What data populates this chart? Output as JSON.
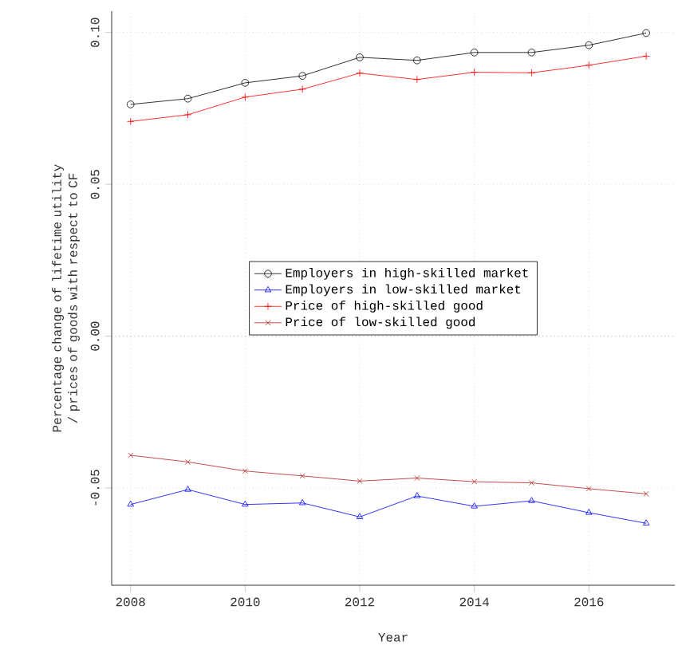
{
  "chart_data": {
    "type": "line",
    "xlabel": "Year",
    "ylabel": "Percentage change of lifetime utility / prices of goods with respect to CF",
    "x": [
      2008,
      2009,
      2010,
      2011,
      2012,
      2013,
      2014,
      2015,
      2016,
      2017
    ],
    "series": [
      {
        "name": "Employers in high-skilled market",
        "color": "#000000",
        "marker": "circle",
        "values": [
          0.0763,
          0.0782,
          0.0834,
          0.0857,
          0.0918,
          0.0908,
          0.0934,
          0.0934,
          0.0958,
          0.0998
        ]
      },
      {
        "name": "Employers in low-skilled market",
        "color": "#0000ff",
        "marker": "triangle",
        "values": [
          -0.0554,
          -0.0505,
          -0.0554,
          -0.0549,
          -0.0595,
          -0.0526,
          -0.056,
          -0.0542,
          -0.0581,
          -0.0616
        ]
      },
      {
        "name": "Price of high-skilled good",
        "color": "#ff0000",
        "marker": "plus",
        "values": [
          0.0707,
          0.0729,
          0.0787,
          0.0813,
          0.0866,
          0.0845,
          0.0869,
          0.0867,
          0.0892,
          0.0922
        ]
      },
      {
        "name": "Price of low-skilled good",
        "color": "#b22222",
        "marker": "cross",
        "values": [
          -0.0392,
          -0.0414,
          -0.0444,
          -0.046,
          -0.0477,
          -0.0467,
          -0.0479,
          -0.0483,
          -0.0502,
          -0.0519
        ]
      }
    ],
    "xlim": [
      2007.67,
      2017.5
    ],
    "ylim": [
      -0.082,
      0.107
    ],
    "xticks": [
      2008,
      2010,
      2012,
      2014,
      2016
    ],
    "yticks": [
      {
        "value": -0.05,
        "label": "-0.05"
      },
      {
        "value": 0,
        "label": "0.00"
      },
      {
        "value": 0.05,
        "label": "0.05"
      },
      {
        "value": 0.1,
        "label": "0.10"
      }
    ],
    "ref_lines": [
      {
        "axis": "y",
        "value": 0,
        "color": "#999999",
        "line_style": "dotted"
      }
    ],
    "grid": true,
    "legend": "center",
    "line_style": "solid"
  }
}
